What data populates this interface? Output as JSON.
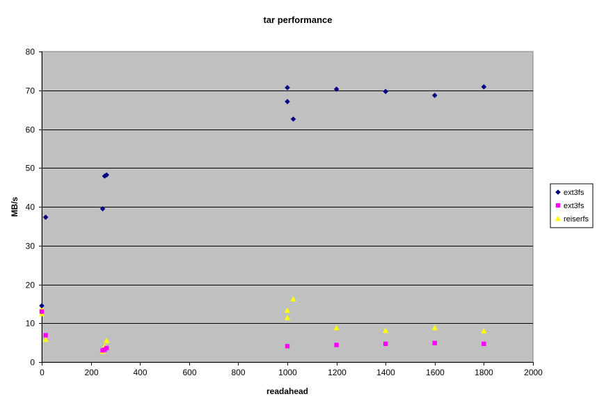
{
  "chart_data": {
    "type": "scatter",
    "title": "tar performance",
    "xlabel": "readahead",
    "ylabel": "MB/s",
    "xlim": [
      0,
      2000
    ],
    "ylim": [
      0,
      80
    ],
    "xticks": [
      0,
      200,
      400,
      600,
      800,
      1000,
      1200,
      1400,
      1600,
      1800,
      2000
    ],
    "yticks": [
      0,
      10,
      20,
      30,
      40,
      50,
      60,
      70,
      80
    ],
    "grid": "horizontal",
    "plot_background": "#C0C0C0",
    "legend_position": "right",
    "series": [
      {
        "name": "ext3fs",
        "marker": "diamond",
        "color": "#000080",
        "points": [
          [
            0,
            14.5
          ],
          [
            16,
            37.3
          ],
          [
            248,
            39.5
          ],
          [
            256,
            47.9
          ],
          [
            264,
            48.2
          ],
          [
            1000,
            70.7
          ],
          [
            1000,
            67.1
          ],
          [
            1024,
            62.6
          ],
          [
            1200,
            70.3
          ],
          [
            1400,
            69.7
          ],
          [
            1600,
            68.7
          ],
          [
            1800,
            70.9
          ]
        ]
      },
      {
        "name": "ext3fs",
        "marker": "square",
        "color": "#FF00FF",
        "points": [
          [
            0,
            13.0
          ],
          [
            16,
            6.9
          ],
          [
            248,
            3.0
          ],
          [
            256,
            3.2
          ],
          [
            264,
            3.6
          ],
          [
            1000,
            4.1
          ],
          [
            1200,
            4.4
          ],
          [
            1400,
            4.7
          ],
          [
            1600,
            4.9
          ],
          [
            1800,
            4.7
          ]
        ]
      },
      {
        "name": "reiserfs",
        "marker": "triangle",
        "color": "#FFFF00",
        "points": [
          [
            0,
            12.4
          ],
          [
            0,
            13.8
          ],
          [
            16,
            5.8
          ],
          [
            248,
            2.7
          ],
          [
            256,
            4.1
          ],
          [
            264,
            5.5
          ],
          [
            1000,
            13.3
          ],
          [
            1000,
            11.4
          ],
          [
            1024,
            16.2
          ],
          [
            1200,
            8.8
          ],
          [
            1400,
            8.1
          ],
          [
            1600,
            8.8
          ],
          [
            1800,
            8.0
          ]
        ]
      }
    ]
  }
}
